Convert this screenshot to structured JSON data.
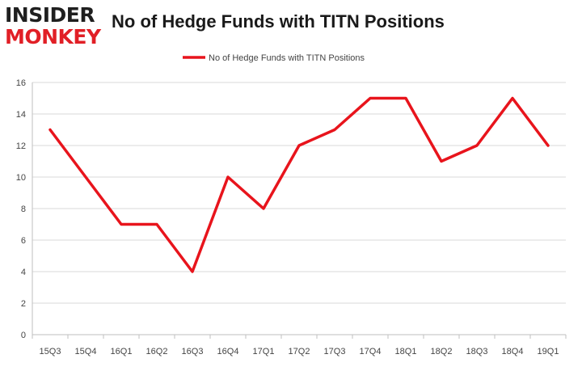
{
  "brand": {
    "line1": "INSIDER",
    "line2": "MONKEY"
  },
  "chart_data": {
    "type": "line",
    "title": "No of Hedge Funds with TITN Positions",
    "categories": [
      "15Q3",
      "15Q4",
      "16Q1",
      "16Q2",
      "16Q3",
      "16Q4",
      "17Q1",
      "17Q2",
      "17Q3",
      "17Q4",
      "18Q1",
      "18Q2",
      "18Q3",
      "18Q4",
      "19Q1"
    ],
    "series": [
      {
        "name": "No of Hedge Funds with TITN Positions",
        "color": "#e8141c",
        "values": [
          13,
          10,
          7,
          7,
          4,
          10,
          8,
          12,
          13,
          15,
          15,
          11,
          12,
          15,
          12
        ]
      }
    ],
    "ylim": [
      0,
      16
    ],
    "yticks": [
      0,
      2,
      4,
      6,
      8,
      10,
      12,
      14,
      16
    ],
    "grid": true,
    "legend": "top-center"
  }
}
